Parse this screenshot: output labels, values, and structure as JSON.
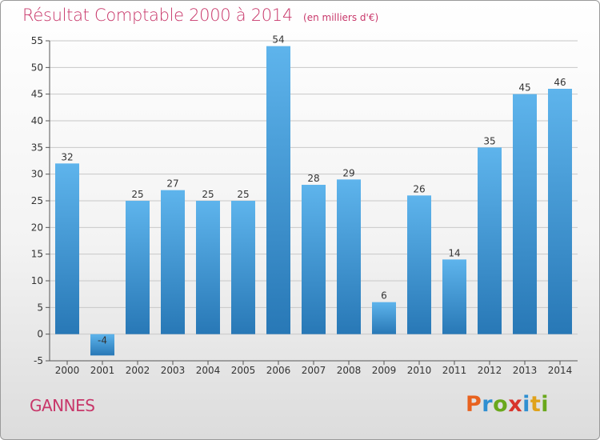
{
  "header": {
    "title": "Résultat Comptable 2000 à 2014",
    "subtitle": "(en milliers d'€)"
  },
  "footer": {
    "town": "GANNES",
    "brand": "Proxiti",
    "brand_colors": [
      "#e8621f",
      "#2f8fd1",
      "#6aa81c",
      "#d8342c",
      "#2f8fd1",
      "#e0a21a",
      "#6aa81c"
    ]
  },
  "colors": {
    "bar_top": "#5eb4ec",
    "bar_bottom": "#2878b6",
    "grid": "#c8c8c8",
    "title": "#c8376a"
  },
  "chart_data": {
    "type": "bar",
    "title": "Résultat Comptable 2000 à 2014",
    "subtitle": "(en milliers d'€)",
    "categories": [
      "2000",
      "2001",
      "2002",
      "2003",
      "2004",
      "2005",
      "2006",
      "2007",
      "2008",
      "2009",
      "2010",
      "2011",
      "2012",
      "2013",
      "2014"
    ],
    "values": [
      32,
      -4,
      25,
      27,
      25,
      25,
      54,
      28,
      29,
      6,
      26,
      14,
      35,
      45,
      46
    ],
    "ylim": [
      -5,
      55
    ],
    "yticks": [
      -5,
      0,
      5,
      10,
      15,
      20,
      25,
      30,
      35,
      40,
      45,
      50,
      55
    ],
    "xlabel": "",
    "ylabel": "",
    "grid": "horizontal",
    "legend": "none"
  }
}
